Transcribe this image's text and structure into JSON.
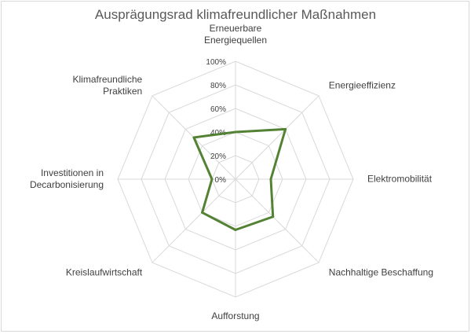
{
  "chart_data": {
    "type": "radar",
    "title": "Ausprägungsrad klimafreundlicher Maßnahmen",
    "categories": [
      "Erneuerbare Energiequellen",
      "Energieeffizienz",
      "Elektromobilität",
      "Nachhaltige Beschaffung",
      "Aufforstung",
      "Kreislaufwirtschaft",
      "Investitionen in Decarbonisierung",
      "Klimafreundliche Praktiken"
    ],
    "category_lines": [
      [
        "Erneuerbare",
        "Energiequellen"
      ],
      [
        "Energieeffizienz"
      ],
      [
        "Elektromobilität"
      ],
      [
        "Nachhaltige Beschaffung"
      ],
      [
        "Aufforstung"
      ],
      [
        "Kreislaufwirtschaft"
      ],
      [
        "Investitionen in",
        "Decarbonisierung"
      ],
      [
        "Klimafreundliche",
        "Praktiken"
      ]
    ],
    "series": [
      {
        "values": [
          0.4,
          0.6,
          0.3,
          0.45,
          0.43,
          0.4,
          0.2,
          0.5
        ]
      }
    ],
    "rlim": [
      0,
      1
    ],
    "ticks": [
      0,
      0.2,
      0.4,
      0.6,
      0.8,
      1.0
    ],
    "tick_labels": [
      "0%",
      "20%",
      "40%",
      "60%",
      "80%",
      "100%"
    ],
    "grid": true,
    "legend": "none",
    "colors": {
      "series": "#548235",
      "grid": "#d9d9d9",
      "text": "#404040",
      "title": "#595959"
    }
  }
}
